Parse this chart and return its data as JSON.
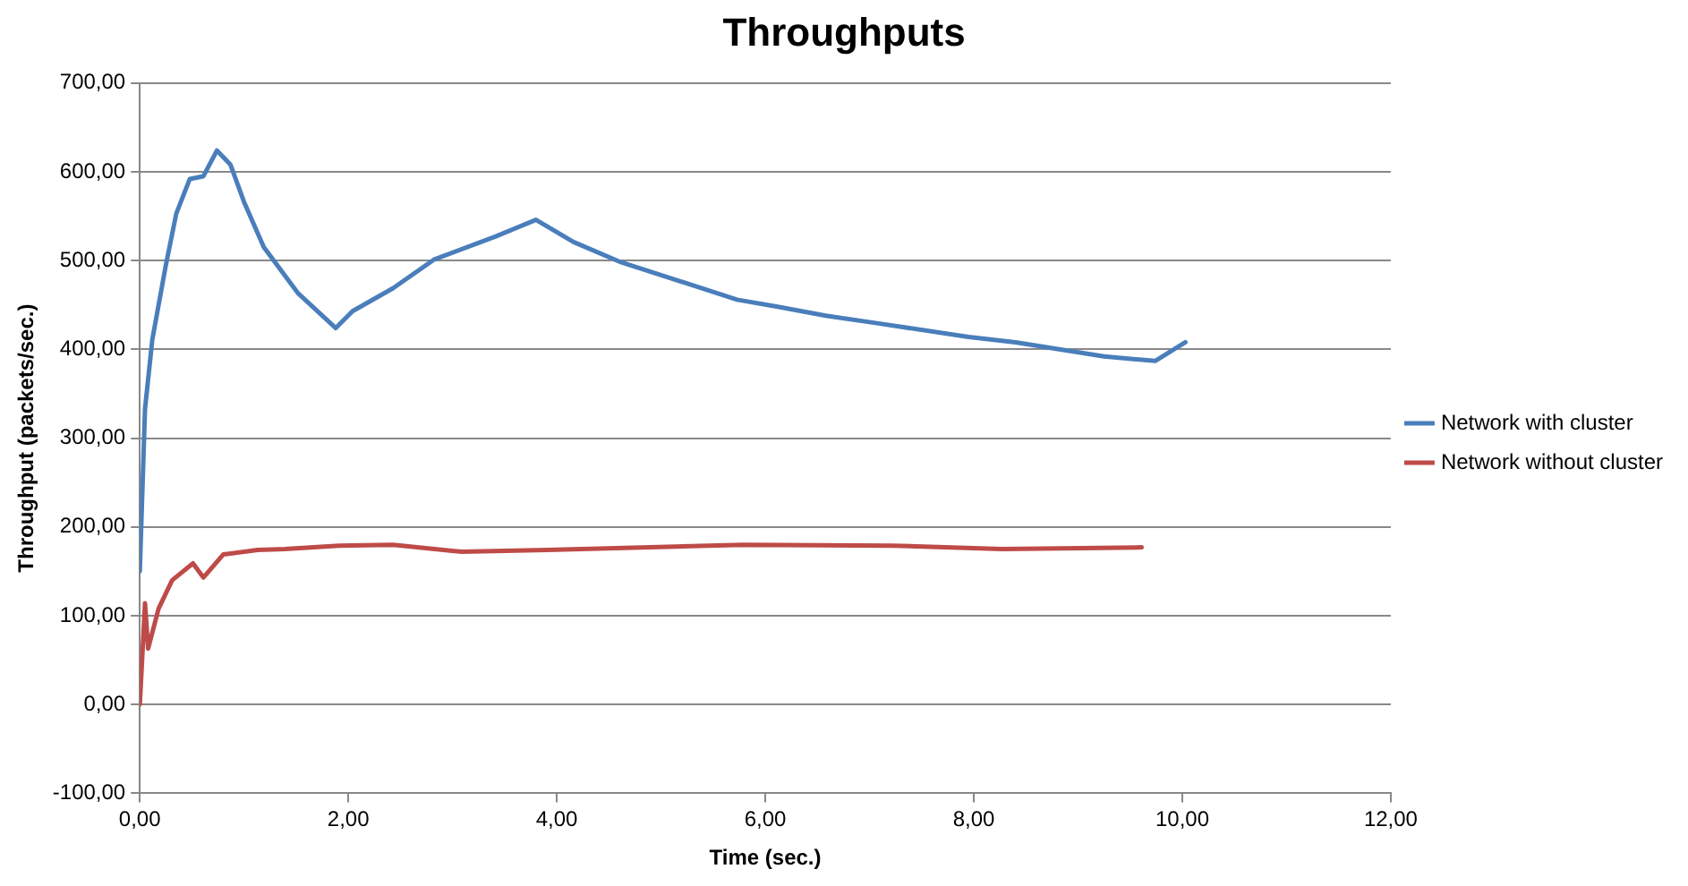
{
  "chart_data": {
    "type": "line",
    "title": "Throughputs",
    "xlabel": "Time (sec.)",
    "ylabel": "Throughput (packets/sec.)",
    "xlim": [
      0,
      12
    ],
    "xticks": [
      {
        "value": 0,
        "label": "0,00"
      },
      {
        "value": 2,
        "label": "2,00"
      },
      {
        "value": 4,
        "label": "4,00"
      },
      {
        "value": 6,
        "label": "6,00"
      },
      {
        "value": 8,
        "label": "8,00"
      },
      {
        "value": 10,
        "label": "10,00"
      },
      {
        "value": 12,
        "label": "12,00"
      }
    ],
    "ylim": [
      -100,
      700
    ],
    "yticks": [
      {
        "value": -100,
        "label": "-100,00"
      },
      {
        "value": 0,
        "label": "0,00"
      },
      {
        "value": 100,
        "label": "100,00"
      },
      {
        "value": 200,
        "label": "200,00"
      },
      {
        "value": 300,
        "label": "300,00"
      },
      {
        "value": 400,
        "label": "400,00"
      },
      {
        "value": 500,
        "label": "500,00"
      },
      {
        "value": 600,
        "label": "600,00"
      },
      {
        "value": 700,
        "label": "700,00"
      }
    ],
    "grid": "y",
    "legend": "right",
    "marker": "none",
    "line_style": "solid",
    "series": [
      {
        "name": "Network with cluster",
        "color": "#4a7ebb",
        "x": [
          0,
          0.05,
          0.12,
          0.25,
          0.35,
          0.48,
          0.61,
          0.74,
          0.87,
          1.0,
          1.19,
          1.52,
          1.88,
          2.04,
          2.43,
          2.82,
          3.41,
          3.8,
          4.16,
          4.62,
          5.73,
          6.12,
          6.58,
          7.1,
          7.95,
          8.4,
          9.25,
          9.74,
          10.03
        ],
        "values": [
          150,
          333,
          411,
          495,
          553,
          592,
          595,
          624,
          608,
          566,
          515,
          463,
          424,
          443,
          469,
          501,
          527,
          546,
          521,
          498,
          456,
          448,
          438,
          429,
          414,
          408,
          392,
          387,
          408
        ]
      },
      {
        "name": "Network without cluster",
        "color": "#be4b48",
        "x": [
          0,
          0.05,
          0.08,
          0.18,
          0.31,
          0.51,
          0.61,
          0.8,
          1.13,
          1.39,
          1.91,
          2.43,
          3.09,
          3.91,
          5.79,
          7.22,
          8.27,
          9.61
        ],
        "values": [
          0,
          114,
          63,
          108,
          140,
          159,
          143,
          169,
          174,
          175,
          179,
          180,
          172,
          174,
          180,
          179,
          175,
          177
        ]
      }
    ]
  }
}
